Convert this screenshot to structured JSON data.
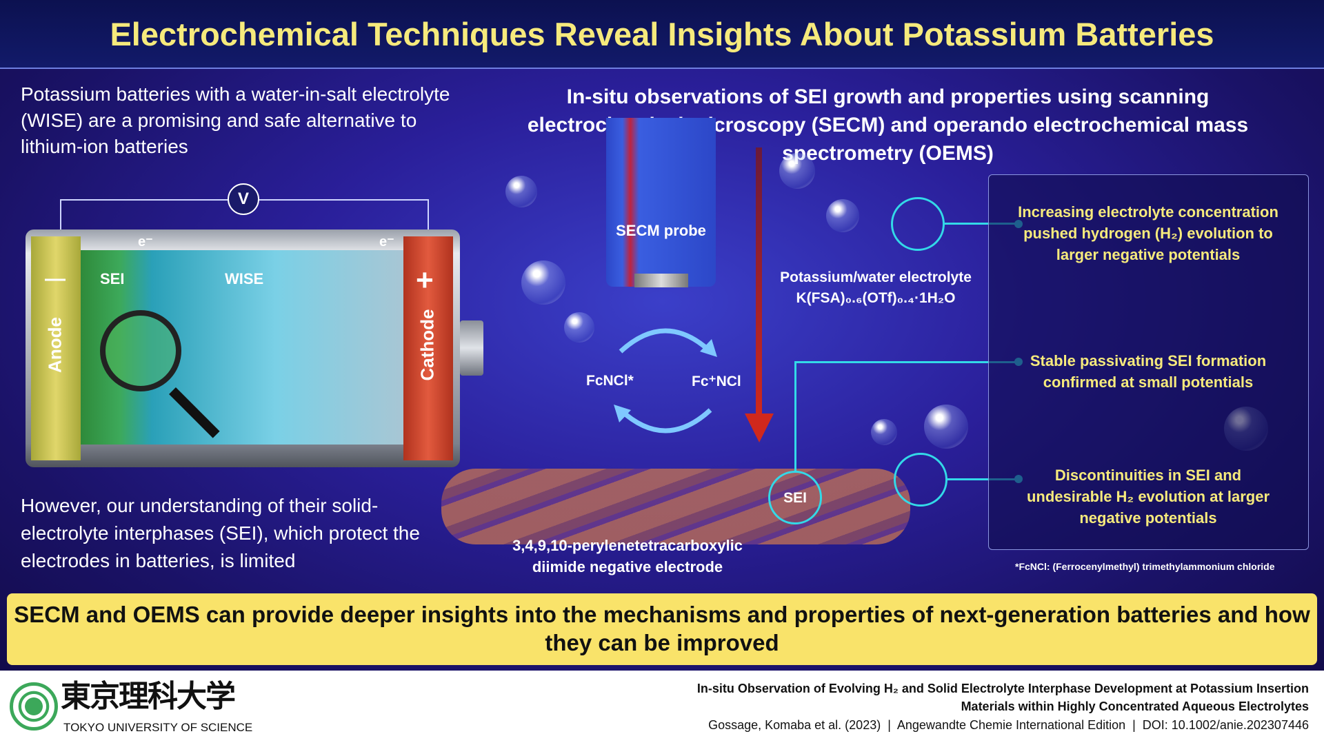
{
  "title": "Electrochemical Techniques Reveal Insights About Potassium Batteries",
  "left": {
    "top_text": "Potassium batteries with a water-in-salt electrolyte (WISE) are a promising and safe alternative to lithium-ion batteries",
    "bottom_text": "However, our understanding of their solid-electrolyte interphases (SEI), which protect the electrodes in batteries, is limited"
  },
  "battery": {
    "voltmeter": "V",
    "electron": "e⁻",
    "anode_sign": "—",
    "cathode_sign": "+",
    "sei": "SEI",
    "wise": "WISE",
    "anode": "Anode",
    "cathode": "Cathode"
  },
  "center": {
    "heading": "In-situ observations of SEI growth and properties using scanning electrochemical microscopy (SECM) and operando electrochemical mass spectrometry (OEMS)",
    "probe": "SECM probe",
    "fcncl": "FcNCl*",
    "fcpncl": "Fc⁺NCl",
    "electrolyte_line1": "Potassium/water electrolyte",
    "electrolyte_line2": "K(FSA)₀.₆(OTf)₀.₄·1H₂O",
    "sei": "SEI",
    "electrode_line1": "3,4,9,10-perylenetetracarboxylic",
    "electrode_line2": "diimide negative electrode"
  },
  "findings": [
    "Increasing electrolyte concentration pushed hydrogen (H₂) evolution to larger negative potentials",
    "Stable passivating SEI formation confirmed at small potentials",
    "Discontinuities in SEI and undesirable H₂ evolution at larger negative potentials"
  ],
  "footnote": "*FcNCl: (Ferrocenylmethyl) trimethylammonium chloride",
  "banner": "SECM and OEMS can provide deeper insights into the mechanisms and properties of next-generation batteries and how they can be improved",
  "footer": {
    "logo_jp": "東京理科大学",
    "logo_en": "TOKYO UNIVERSITY OF SCIENCE",
    "paper_line1": "In-situ Observation of Evolving H₂ and Solid Electrolyte Interphase Development at Potassium Insertion",
    "paper_line2": "Materials within Highly Concentrated Aqueous Electrolytes",
    "citation": "Gossage, Komaba et al. (2023)  |  Angewandte Chemie International Edition  |  DOI: 10.1002/anie.202307446"
  },
  "colors": {
    "title": "#f6ea7c",
    "banner": "#f9e36a",
    "accent": "#33d9e8",
    "arrow": "#d0281c"
  }
}
